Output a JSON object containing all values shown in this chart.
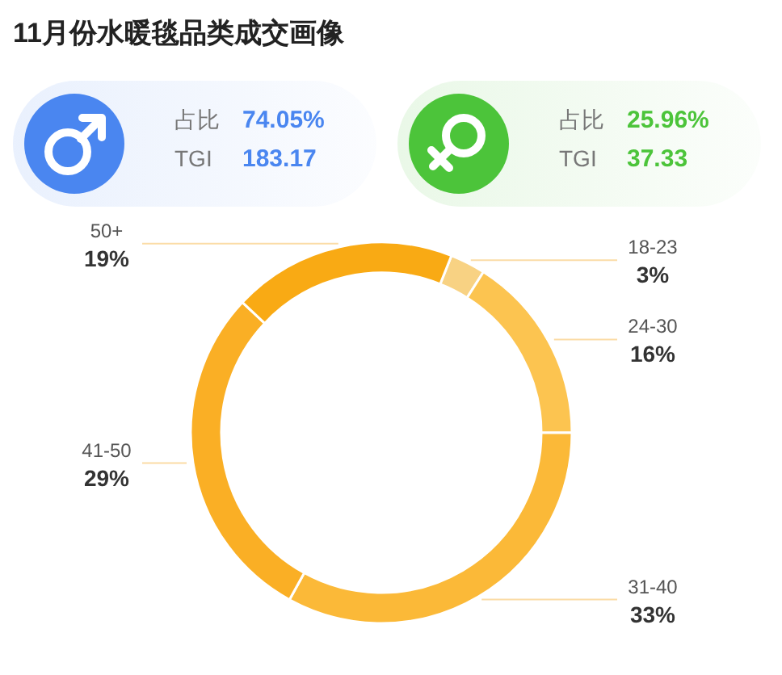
{
  "chart_data": [
    {
      "type": "other",
      "title": "11月份水暖毯品类成交画像",
      "color": "#4a86f0",
      "annotations": [
        "占比",
        "74.05%",
        "TGI",
        "183.17"
      ]
    },
    {
      "type": "other",
      "color": "#4cc43a",
      "annotations": [
        "占比",
        "25.96%",
        "TGI",
        "37.33"
      ]
    },
    {
      "type": "donut",
      "categories": [
        "18-23",
        "24-30",
        "31-40",
        "41-50",
        "50+"
      ],
      "values": [
        3,
        16,
        33,
        29,
        19
      ],
      "colors": [
        "#f8d283",
        "#fcc450",
        "#fbb938",
        "#faaf25",
        "#f9aa14"
      ],
      "value_labels": [
        "3%",
        "16%",
        "33%",
        "29%",
        "19%"
      ]
    }
  ]
}
